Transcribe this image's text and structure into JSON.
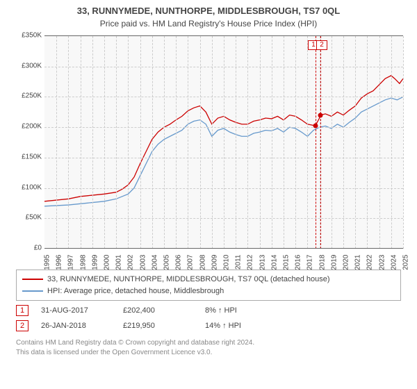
{
  "title": "33, RUNNYMEDE, NUNTHORPE, MIDDLESBROUGH, TS7 0QL",
  "subtitle": "Price paid vs. HM Land Registry's House Price Index (HPI)",
  "chart": {
    "type": "line",
    "background_color": "#f8f8f8",
    "grid_color": "#cccccc",
    "y_axis": {
      "min": 0,
      "max": 350,
      "ticks": [
        0,
        50,
        100,
        150,
        200,
        250,
        300,
        350
      ],
      "tick_labels": [
        "£0",
        "£50K",
        "£100K",
        "£150K",
        "£200K",
        "£250K",
        "£300K",
        "£350K"
      ],
      "label_fontsize": 10
    },
    "x_axis": {
      "min": 1995,
      "max": 2025,
      "ticks": [
        1995,
        1996,
        1997,
        1998,
        1999,
        2000,
        2001,
        2002,
        2003,
        2004,
        2005,
        2006,
        2007,
        2008,
        2009,
        2010,
        2011,
        2012,
        2013,
        2014,
        2015,
        2016,
        2017,
        2018,
        2019,
        2020,
        2021,
        2022,
        2023,
        2024,
        2025
      ],
      "label_fontsize": 10
    },
    "series": [
      {
        "name": "price_paid",
        "label": "33, RUNNYMEDE, NUNTHORPE, MIDDLESBROUGH, TS7 0QL (detached house)",
        "color": "#cc0000",
        "line_width": 1.3,
        "x": [
          1995,
          1996,
          1997,
          1997.5,
          1998,
          1999,
          2000,
          2001,
          2001.5,
          2002,
          2002.5,
          2003,
          2003.5,
          2004,
          2004.5,
          2005,
          2005.5,
          2006,
          2006.5,
          2007,
          2007.5,
          2008,
          2008.5,
          2009,
          2009.5,
          2010,
          2010.5,
          2011,
          2011.5,
          2012,
          2012.5,
          2013,
          2013.5,
          2014,
          2014.5,
          2015,
          2015.5,
          2016,
          2016.5,
          2017,
          2017.66,
          2018,
          2018.07,
          2018.5,
          2019,
          2019.5,
          2020,
          2020.5,
          2021,
          2021.5,
          2022,
          2022.5,
          2023,
          2023.5,
          2024,
          2024.3,
          2024.7,
          2025
        ],
        "y": [
          78,
          80,
          82,
          84,
          86,
          88,
          90,
          93,
          98,
          105,
          118,
          140,
          160,
          180,
          192,
          200,
          205,
          212,
          218,
          227,
          232,
          235,
          225,
          205,
          215,
          218,
          212,
          208,
          205,
          205,
          210,
          212,
          215,
          214,
          218,
          212,
          220,
          218,
          212,
          205,
          202.4,
          215,
          219.95,
          222,
          218,
          225,
          220,
          228,
          235,
          248,
          255,
          260,
          270,
          280,
          285,
          280,
          272,
          280
        ]
      },
      {
        "name": "hpi",
        "label": "HPI: Average price, detached house, Middlesbrough",
        "color": "#6699cc",
        "line_width": 1.3,
        "x": [
          1995,
          1996,
          1997,
          1998,
          1999,
          2000,
          2001,
          2002,
          2002.5,
          2003,
          2003.5,
          2004,
          2004.5,
          2005,
          2005.5,
          2006,
          2006.5,
          2007,
          2007.5,
          2008,
          2008.5,
          2009,
          2009.5,
          2010,
          2010.5,
          2011,
          2011.5,
          2012,
          2012.5,
          2013,
          2013.5,
          2014,
          2014.5,
          2015,
          2015.5,
          2016,
          2016.5,
          2017,
          2017.5,
          2018,
          2018.5,
          2019,
          2019.5,
          2020,
          2020.5,
          2021,
          2021.5,
          2022,
          2022.5,
          2023,
          2023.5,
          2024,
          2024.5,
          2025
        ],
        "y": [
          70,
          71,
          72,
          74,
          76,
          78,
          82,
          90,
          100,
          120,
          140,
          160,
          172,
          180,
          185,
          190,
          195,
          205,
          210,
          212,
          205,
          185,
          195,
          198,
          192,
          188,
          185,
          185,
          190,
          192,
          195,
          194,
          198,
          192,
          200,
          198,
          192,
          185,
          195,
          200,
          202,
          198,
          205,
          200,
          208,
          215,
          225,
          230,
          235,
          240,
          245,
          248,
          245,
          250
        ]
      }
    ],
    "markers": [
      {
        "n": "1",
        "date_x": 2017.66,
        "y": 202.4,
        "badge_pair_x": 2017.5
      },
      {
        "n": "2",
        "date_x": 2018.07,
        "y": 219.95,
        "badge_pair_x": 2018.2
      }
    ]
  },
  "legend": [
    {
      "color": "#cc0000",
      "label": "33, RUNNYMEDE, NUNTHORPE, MIDDLESBROUGH, TS7 0QL (detached house)"
    },
    {
      "color": "#6699cc",
      "label": "HPI: Average price, detached house, Middlesbrough"
    }
  ],
  "sales": [
    {
      "n": "1",
      "date": "31-AUG-2017",
      "price": "£202,400",
      "delta": "8% ",
      "suffix": " HPI"
    },
    {
      "n": "2",
      "date": "26-JAN-2018",
      "price": "£219,950",
      "delta": "14% ",
      "suffix": " HPI"
    }
  ],
  "footer_line1": "Contains HM Land Registry data © Crown copyright and database right 2024.",
  "footer_line2": "This data is licensed under the Open Government Licence v3.0."
}
